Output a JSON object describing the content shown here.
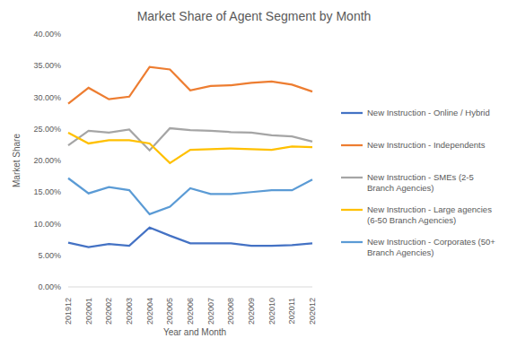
{
  "chart_data": {
    "type": "line",
    "title": "Market Share of Agent Segment by Month",
    "x_label": "Year and Month",
    "y_label": "Market Share",
    "categories": [
      "201912",
      "202001",
      "202002",
      "202003",
      "202004",
      "202005",
      "202006",
      "202007",
      "202008",
      "202009",
      "202010",
      "202011",
      "202012"
    ],
    "series": [
      {
        "name": "New Instruction - Online / Hybrid",
        "color": "#4472c4",
        "values": [
          7.0,
          6.3,
          6.8,
          6.5,
          9.4,
          8.1,
          6.9,
          6.9,
          6.9,
          6.5,
          6.5,
          6.6,
          6.9
        ]
      },
      {
        "name": "New Instruction - Independents",
        "color": "#ed7d31",
        "values": [
          29.0,
          31.5,
          29.7,
          30.1,
          34.8,
          34.4,
          31.1,
          31.8,
          31.9,
          32.3,
          32.5,
          32.0,
          30.9
        ]
      },
      {
        "name": "New Instruction - SMEs (2-5 Branch Agencies)",
        "color": "#a5a5a5",
        "values": [
          22.4,
          24.7,
          24.4,
          24.9,
          21.6,
          25.1,
          24.8,
          24.7,
          24.5,
          24.4,
          24.0,
          23.8,
          23.0
        ]
      },
      {
        "name": "New Instruction - Large agencies (6-50 Branch Agencies)",
        "color": "#ffc000",
        "values": [
          24.4,
          22.7,
          23.2,
          23.2,
          22.7,
          19.6,
          21.7,
          21.8,
          21.9,
          21.8,
          21.7,
          22.2,
          22.1
        ]
      },
      {
        "name": "New Instruction - Corporates (50+ Branch Agencies)",
        "color": "#5b9bd5",
        "values": [
          17.2,
          14.8,
          15.8,
          15.3,
          11.5,
          12.7,
          15.6,
          14.7,
          14.7,
          15.0,
          15.3,
          15.3,
          17.0
        ]
      }
    ],
    "ylim": [
      0,
      40
    ],
    "yticks": [
      {
        "value": 0,
        "label": "0.00%"
      },
      {
        "value": 5,
        "label": "5.00%"
      },
      {
        "value": 10,
        "label": "10.00%"
      },
      {
        "value": 15,
        "label": "15.00%"
      },
      {
        "value": 20,
        "label": "20.00%"
      },
      {
        "value": 25,
        "label": "25.00%"
      },
      {
        "value": 30,
        "label": "30.00%"
      },
      {
        "value": 35,
        "label": "35.00%"
      },
      {
        "value": 40,
        "label": "40.00%"
      }
    ],
    "grid": false,
    "legend": "right"
  }
}
